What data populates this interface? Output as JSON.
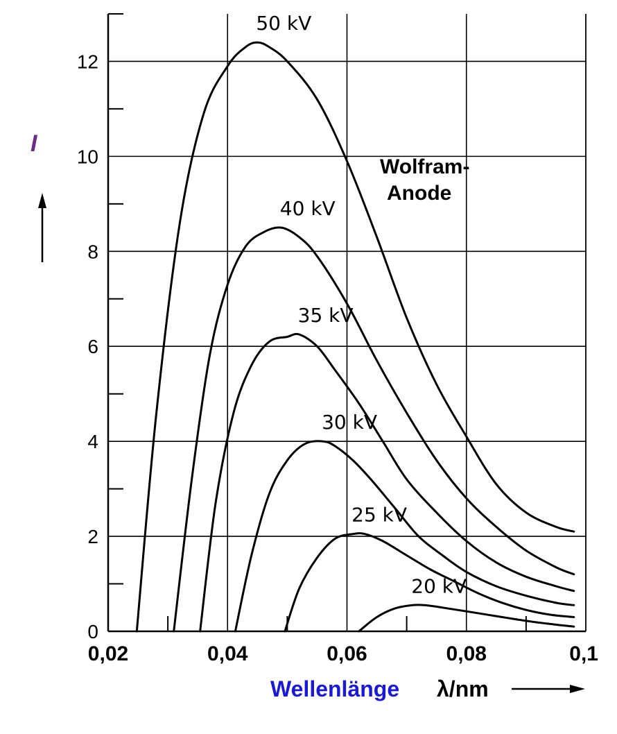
{
  "chart_data": {
    "type": "line",
    "title": "",
    "annotation": [
      "Wolfram-",
      "Anode"
    ],
    "xlabel": "Wellenlänge",
    "xlabel_symbol": "λ/nm",
    "ylabel": "I",
    "xlim": [
      0.02,
      0.1
    ],
    "ylim": [
      0,
      13
    ],
    "x_ticks": [
      0.02,
      0.04,
      0.06,
      0.08,
      0.1
    ],
    "x_tick_labels": [
      "0,02",
      "0,04",
      "0,06",
      "0,08",
      "0,1"
    ],
    "y_ticks": [
      0,
      2,
      4,
      6,
      8,
      10,
      12
    ],
    "y_tick_labels": [
      "0",
      "2",
      "4",
      "6",
      "8",
      "10",
      "12"
    ],
    "grid": true,
    "colors": {
      "line": "#000000",
      "grid": "#000000",
      "xlabel": "#1a1ad6",
      "ylabel": "#6b2a8c"
    },
    "series": [
      {
        "name": "50 kV",
        "x": [
          0.0248,
          0.028,
          0.032,
          0.036,
          0.04,
          0.043,
          0.045,
          0.047,
          0.05,
          0.055,
          0.06,
          0.065,
          0.07,
          0.075,
          0.08,
          0.085,
          0.09,
          0.095,
          0.098
        ],
        "y": [
          0,
          4.5,
          8.6,
          10.9,
          11.9,
          12.3,
          12.4,
          12.3,
          12.0,
          11.2,
          9.9,
          8.3,
          6.6,
          5.2,
          4.1,
          3.1,
          2.5,
          2.2,
          2.1
        ]
      },
      {
        "name": "40 kV",
        "x": [
          0.031,
          0.034,
          0.037,
          0.04,
          0.043,
          0.046,
          0.049,
          0.052,
          0.055,
          0.06,
          0.065,
          0.07,
          0.075,
          0.08,
          0.085,
          0.09,
          0.095,
          0.098
        ],
        "y": [
          0,
          3.2,
          5.8,
          7.3,
          8.1,
          8.4,
          8.5,
          8.3,
          7.9,
          6.9,
          5.7,
          4.6,
          3.6,
          2.8,
          2.2,
          1.7,
          1.35,
          1.2
        ]
      },
      {
        "name": "35 kV",
        "x": [
          0.0354,
          0.038,
          0.041,
          0.044,
          0.047,
          0.05,
          0.052,
          0.055,
          0.058,
          0.062,
          0.066,
          0.07,
          0.075,
          0.08,
          0.085,
          0.09,
          0.095,
          0.098
        ],
        "y": [
          0,
          2.7,
          4.6,
          5.6,
          6.1,
          6.2,
          6.25,
          6.0,
          5.5,
          4.8,
          4.0,
          3.2,
          2.5,
          1.9,
          1.45,
          1.15,
          0.95,
          0.85
        ]
      },
      {
        "name": "30 kV",
        "x": [
          0.0413,
          0.044,
          0.047,
          0.05,
          0.053,
          0.056,
          0.058,
          0.061,
          0.064,
          0.068,
          0.072,
          0.076,
          0.08,
          0.085,
          0.09,
          0.095,
          0.098
        ],
        "y": [
          0,
          1.6,
          2.9,
          3.6,
          3.95,
          4.0,
          3.9,
          3.6,
          3.2,
          2.6,
          2.0,
          1.6,
          1.25,
          0.95,
          0.75,
          0.6,
          0.55
        ]
      },
      {
        "name": "25 kV",
        "x": [
          0.0496,
          0.052,
          0.055,
          0.058,
          0.061,
          0.063,
          0.066,
          0.07,
          0.074,
          0.078,
          0.082,
          0.086,
          0.09,
          0.094,
          0.098
        ],
        "y": [
          0,
          0.9,
          1.55,
          1.95,
          2.05,
          2.05,
          1.9,
          1.6,
          1.3,
          1.05,
          0.8,
          0.6,
          0.45,
          0.35,
          0.3
        ]
      },
      {
        "name": "20 kV",
        "x": [
          0.062,
          0.065,
          0.068,
          0.071,
          0.073,
          0.076,
          0.08,
          0.085,
          0.09,
          0.095,
          0.098
        ],
        "y": [
          0,
          0.3,
          0.48,
          0.55,
          0.55,
          0.5,
          0.42,
          0.32,
          0.22,
          0.14,
          0.1
        ]
      }
    ]
  }
}
